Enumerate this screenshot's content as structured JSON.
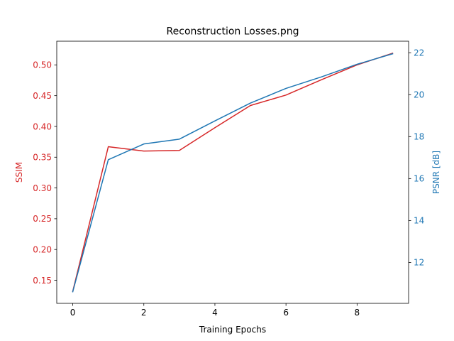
{
  "chart_data": {
    "type": "line",
    "title": "Reconstruction Losses.png",
    "xlabel": "Training Epochs",
    "x": [
      0,
      1,
      2,
      3,
      4,
      5,
      6,
      7,
      8,
      9
    ],
    "xlim": [
      -0.45,
      9.45
    ],
    "xticks": [
      0,
      2,
      4,
      6,
      8
    ],
    "grid": false,
    "left_axis": {
      "label": "SSIM",
      "color": "#d62728",
      "ylim": [
        0.1125,
        0.5385
      ],
      "ticks": [
        0.15,
        0.2,
        0.25,
        0.3,
        0.35,
        0.4,
        0.45,
        0.5
      ],
      "tick_labels": [
        "0.15",
        "0.20",
        "0.25",
        "0.30",
        "0.35",
        "0.40",
        "0.45",
        "0.50"
      ]
    },
    "right_axis": {
      "label": "PSNR [dB]",
      "color": "#1f77b4",
      "ylim": [
        10.05,
        22.55
      ],
      "ticks": [
        12,
        14,
        16,
        18,
        20,
        22
      ],
      "tick_labels": [
        "12",
        "14",
        "16",
        "18",
        "20",
        "22"
      ]
    },
    "series": [
      {
        "axis": "left",
        "color": "#d62728",
        "values": [
          0.132,
          0.367,
          0.36,
          0.361,
          0.398,
          0.434,
          0.451,
          0.476,
          0.5,
          0.519
        ]
      },
      {
        "axis": "right",
        "color": "#1f77b4",
        "values": [
          10.6,
          16.9,
          17.65,
          17.88,
          18.75,
          19.6,
          20.3,
          20.85,
          21.45,
          21.95
        ]
      }
    ]
  }
}
